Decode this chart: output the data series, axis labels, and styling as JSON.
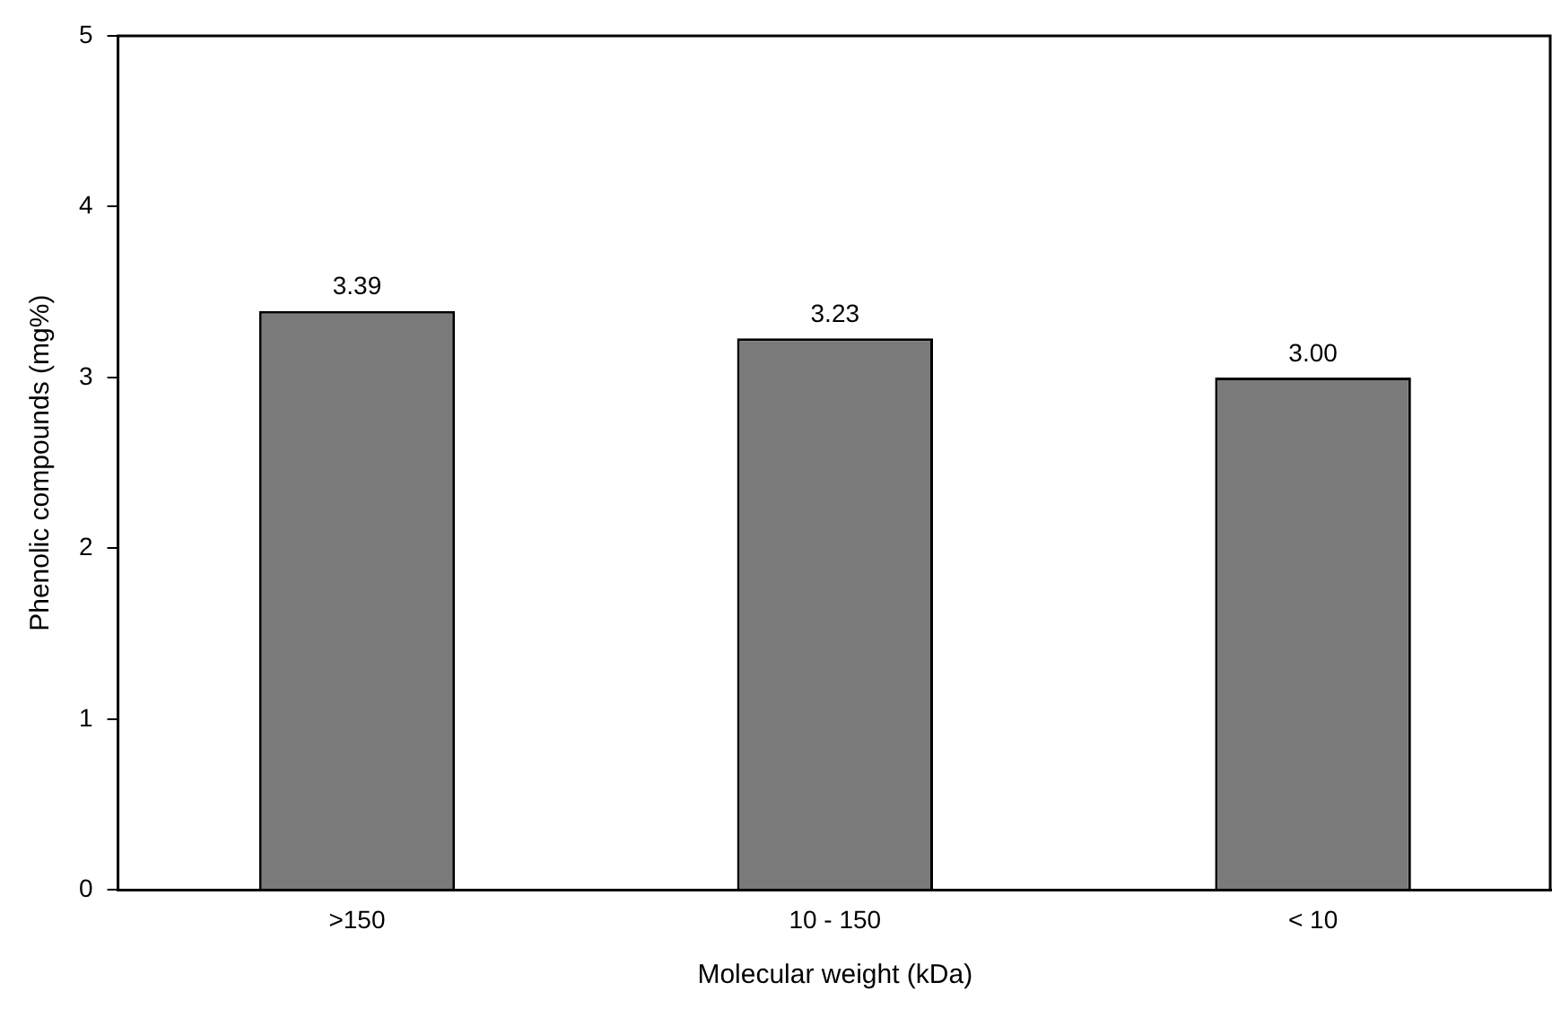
{
  "chart_data": {
    "type": "bar",
    "xlabel": "Molecular weight (kDa)",
    "ylabel": "Phenolic compounds (mg%)",
    "categories": [
      ">150",
      "10 - 150",
      "< 10"
    ],
    "values": [
      3.39,
      3.23,
      3.0
    ],
    "value_labels": [
      "3.39",
      "3.23",
      "3.00"
    ],
    "color": "#7a7a7a",
    "ylim": [
      0,
      5
    ],
    "yticks": [
      0,
      1,
      2,
      3,
      4,
      5
    ],
    "grid": false,
    "legend": false
  }
}
